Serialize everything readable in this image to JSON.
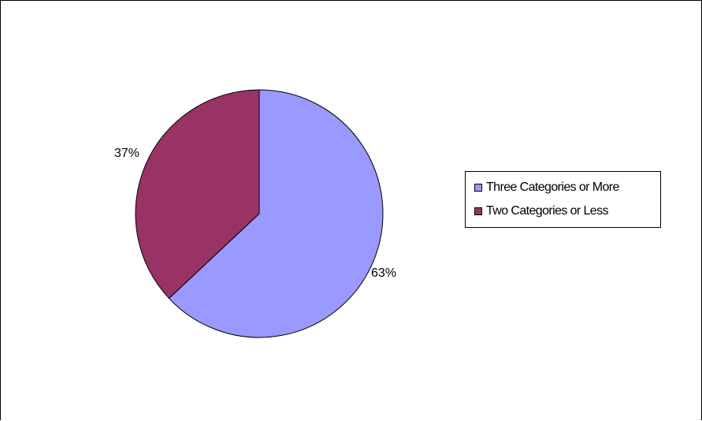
{
  "chart_data": {
    "type": "pie",
    "title": "",
    "categories": [
      "Three Categories or More",
      "Two Categories or Less"
    ],
    "values": [
      63,
      37
    ],
    "labels": [
      "63%",
      "37%"
    ],
    "colors": [
      "#9999FF",
      "#993366"
    ],
    "start_angle": "12 o'clock, clockwise",
    "legend": {
      "placement": "right",
      "entries": [
        "Three Categories or More",
        "Two Categories or Less"
      ]
    }
  }
}
